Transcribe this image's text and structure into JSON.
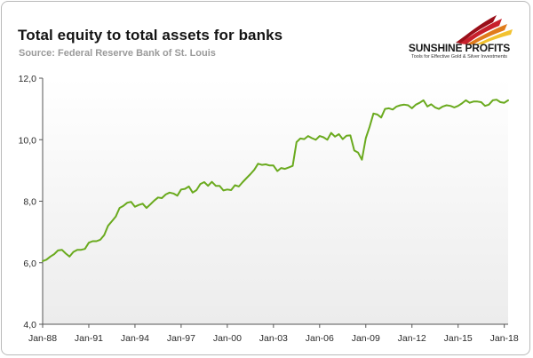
{
  "header": {
    "title": "Total equity to total assets for banks",
    "source": "Source: Federal Reserve Bank of St. Louis"
  },
  "logo": {
    "name_part1": "SUNSHINE",
    "name_part2": "PROFITS",
    "tagline": "Tools for Effective Gold & Silver Investments",
    "colors": [
      "#c8202c",
      "#e07b1c",
      "#f2c230",
      "#9a0f19"
    ]
  },
  "colors": {
    "series": "#6aaa1e",
    "plot_bg_top": "#ffffff",
    "plot_bg_bottom": "#ededed",
    "axis": "#555555"
  },
  "chart_data": {
    "type": "line",
    "title": "Total equity to total assets for banks",
    "subtitle": "Source: Federal Reserve Bank of St. Louis",
    "xlabel": "",
    "ylabel": "",
    "ylim": [
      4,
      12
    ],
    "xlim": [
      1988.0,
      2018.25
    ],
    "y_ticks": [
      "4,0",
      "6,0",
      "8,0",
      "10,0",
      "12,0"
    ],
    "y_tick_values": [
      4,
      6,
      8,
      10,
      12
    ],
    "x_ticks": [
      "Jan-88",
      "Jan-91",
      "Jan-94",
      "Jan-97",
      "Jan-00",
      "Jan-03",
      "Jan-06",
      "Jan-09",
      "Jan-12",
      "Jan-15",
      "Jan-18"
    ],
    "x_tick_values": [
      1988,
      1991,
      1994,
      1997,
      2000,
      2003,
      2006,
      2009,
      2012,
      2015,
      2018
    ],
    "grid": false,
    "legend": "none",
    "series": [
      {
        "x": [
          1988.0,
          1988.25,
          1988.5,
          1988.75,
          1989.0,
          1989.25,
          1989.5,
          1989.75,
          1990.0,
          1990.25,
          1990.5,
          1990.75,
          1991.0,
          1991.25,
          1991.5,
          1991.75,
          1992.0,
          1992.25,
          1992.5,
          1992.75,
          1993.0,
          1993.25,
          1993.5,
          1993.75,
          1994.0,
          1994.25,
          1994.5,
          1994.75,
          1995.0,
          1995.25,
          1995.5,
          1995.75,
          1996.0,
          1996.25,
          1996.5,
          1996.75,
          1997.0,
          1997.25,
          1997.5,
          1997.75,
          1998.0,
          1998.25,
          1998.5,
          1998.75,
          1999.0,
          1999.25,
          1999.5,
          1999.75,
          2000.0,
          2000.25,
          2000.5,
          2000.75,
          2001.0,
          2001.25,
          2001.5,
          2001.75,
          2002.0,
          2002.25,
          2002.5,
          2002.75,
          2003.0,
          2003.25,
          2003.5,
          2003.75,
          2004.0,
          2004.25,
          2004.5,
          2004.75,
          2005.0,
          2005.25,
          2005.5,
          2005.75,
          2006.0,
          2006.25,
          2006.5,
          2006.75,
          2007.0,
          2007.25,
          2007.5,
          2007.75,
          2008.0,
          2008.25,
          2008.5,
          2008.75,
          2009.0,
          2009.25,
          2009.5,
          2009.75,
          2010.0,
          2010.25,
          2010.5,
          2010.75,
          2011.0,
          2011.25,
          2011.5,
          2011.75,
          2012.0,
          2012.25,
          2012.5,
          2012.75,
          2013.0,
          2013.25,
          2013.5,
          2013.75,
          2014.0,
          2014.25,
          2014.5,
          2014.75,
          2015.0,
          2015.25,
          2015.5,
          2015.75,
          2016.0,
          2016.25,
          2016.5,
          2016.75,
          2017.0,
          2017.25,
          2017.5,
          2017.75,
          2018.0,
          2018.25
        ],
        "y": [
          6.05,
          6.1,
          6.2,
          6.28,
          6.4,
          6.42,
          6.3,
          6.2,
          6.35,
          6.42,
          6.42,
          6.45,
          6.65,
          6.7,
          6.7,
          6.75,
          6.9,
          7.2,
          7.35,
          7.5,
          7.78,
          7.85,
          7.95,
          7.98,
          7.82,
          7.88,
          7.92,
          7.78,
          7.9,
          8.02,
          8.12,
          8.1,
          8.22,
          8.28,
          8.25,
          8.18,
          8.38,
          8.4,
          8.48,
          8.28,
          8.36,
          8.56,
          8.62,
          8.5,
          8.63,
          8.5,
          8.5,
          8.35,
          8.38,
          8.36,
          8.52,
          8.48,
          8.62,
          8.75,
          8.88,
          9.02,
          9.22,
          9.18,
          9.2,
          9.16,
          9.16,
          8.98,
          9.08,
          9.05,
          9.1,
          9.15,
          9.92,
          10.04,
          10.02,
          10.12,
          10.05,
          10.0,
          10.12,
          10.08,
          10.0,
          10.22,
          10.1,
          10.18,
          10.02,
          10.13,
          10.14,
          9.65,
          9.58,
          9.35,
          10.05,
          10.42,
          10.85,
          10.82,
          10.72,
          11.0,
          11.02,
          10.98,
          11.08,
          11.12,
          11.14,
          11.12,
          11.02,
          11.14,
          11.2,
          11.28,
          11.08,
          11.15,
          11.05,
          11.0,
          11.08,
          11.12,
          11.1,
          11.05,
          11.1,
          11.18,
          11.28,
          11.2,
          11.24,
          11.24,
          11.22,
          11.1,
          11.14,
          11.28,
          11.3,
          11.22,
          11.2,
          11.28
        ]
      }
    ]
  }
}
